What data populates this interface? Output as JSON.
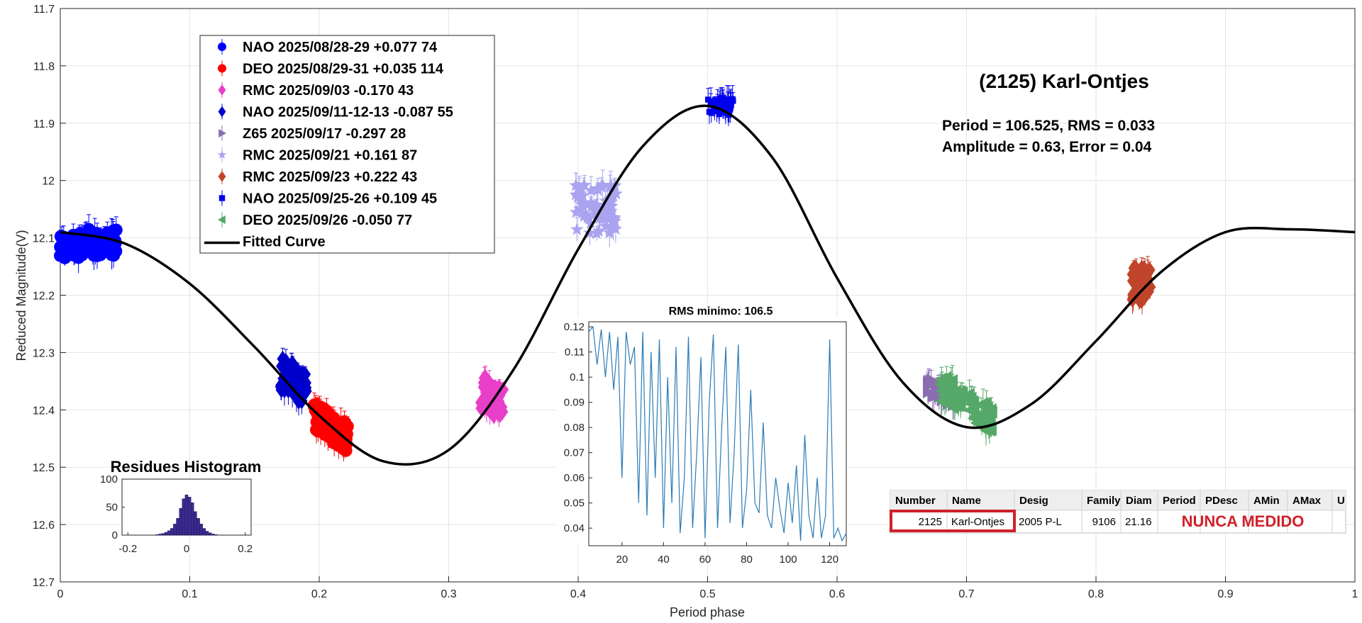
{
  "chart_data": [
    {
      "type": "scatter",
      "title": "(2125) Karl-Ontjes",
      "xlabel": "Period phase",
      "ylabel": "Reduced Magnitude(V)",
      "xlim": [
        0,
        1
      ],
      "ylim": [
        11.7,
        12.7
      ],
      "y_reversed": true,
      "xticks": [
        "0",
        "0.1",
        "0.2",
        "0.3",
        "0.4",
        "0.5",
        "0.6",
        "0.7",
        "0.8",
        "0.9",
        "1"
      ],
      "yticks": [
        "11.7",
        "11.8",
        "11.9",
        "12",
        "12.1",
        "12.2",
        "12.3",
        "12.4",
        "12.5",
        "12.6",
        "12.7"
      ],
      "stats": {
        "period_line": "Period =  106.525, RMS = 0.033",
        "amplitude_line": "Amplitude = 0.63, Error = 0.04"
      },
      "series": [
        {
          "name": "NAO 2025/08/28-29   +0.077    74",
          "color": "#0000ff",
          "marker": "circle",
          "count": 74,
          "phase_range": [
            0.0,
            0.045
          ],
          "center_mag": 12.11
        },
        {
          "name": "DEO 2025/08/29-31   +0.035  114",
          "color": "#ff0000",
          "marker": "circle",
          "count": 114,
          "phase_range": [
            0.195,
            0.222
          ],
          "center_mag": 12.43
        },
        {
          "name": "RMC 2025/09/03   -0.170    43",
          "color": "#e83fc8",
          "marker": "diamond",
          "count": 43,
          "phase_range": [
            0.325,
            0.342
          ],
          "center_mag": 12.38
        },
        {
          "name": "NAO 2025/09/11-12-13 -0.087 55",
          "color": "#0000cc",
          "marker": "diamond",
          "count": 55,
          "phase_range": [
            0.17,
            0.19
          ],
          "center_mag": 12.35
        },
        {
          "name": "Z65 2025/09/17    -0.297    28",
          "color": "#8a6db0",
          "marker": "triangle-right",
          "count": 28,
          "phase_range": [
            0.67,
            0.69
          ],
          "center_mag": 12.37
        },
        {
          "name": "RMC 2025/09/21    +0.161    87",
          "color": "#a9a3f0",
          "marker": "star",
          "count": 87,
          "phase_range": [
            0.398,
            0.43
          ],
          "center_mag": 12.05
        },
        {
          "name": "RMC 2025/09/23    +0.222    43",
          "color": "#c0442a",
          "marker": "diamond",
          "count": 43,
          "phase_range": [
            0.828,
            0.842
          ],
          "center_mag": 12.18
        },
        {
          "name": "NAO 2025/09/25-26  +0.109    45",
          "color": "#0000ee",
          "marker": "square",
          "count": 45,
          "phase_range": [
            0.5,
            0.52
          ],
          "center_mag": 11.87
        },
        {
          "name": "DEO 2025/09/26    -0.050    77",
          "color": "#55a868",
          "marker": "triangle-left",
          "count": 77,
          "phase_range": [
            0.68,
            0.72
          ],
          "center_mag": 12.39
        },
        {
          "name": "Fitted Curve",
          "color": "#000000",
          "marker": "line",
          "x": [
            0,
            0.05,
            0.1,
            0.15,
            0.2,
            0.25,
            0.3,
            0.35,
            0.4,
            0.45,
            0.5,
            0.55,
            0.6,
            0.65,
            0.7,
            0.75,
            0.8,
            0.85,
            0.9,
            0.95,
            1
          ],
          "y": [
            12.09,
            12.11,
            12.18,
            12.29,
            12.41,
            12.49,
            12.47,
            12.33,
            12.12,
            11.94,
            11.87,
            11.96,
            12.17,
            12.35,
            12.43,
            12.39,
            12.28,
            12.16,
            12.09,
            12.085,
            12.09
          ]
        }
      ]
    },
    {
      "type": "line",
      "title": "RMS minimo: 106.5",
      "xticks": [
        "20",
        "40",
        "60",
        "80",
        "100",
        "120"
      ],
      "yticks": [
        "0.12",
        "0.11",
        "0.1",
        "0.09",
        "0.08",
        "0.07",
        "0.06",
        "0.05",
        "0.04"
      ],
      "xlim": [
        4,
        128
      ],
      "ylim": [
        0.033,
        0.122
      ],
      "x": [
        4,
        6,
        8,
        10,
        12,
        14,
        16,
        18,
        20,
        22,
        24,
        26,
        28,
        30,
        32,
        34,
        36,
        38,
        40,
        42,
        44,
        46,
        48,
        50,
        52,
        54,
        56,
        58,
        60,
        62,
        64,
        66,
        68,
        70,
        72,
        74,
        76,
        78,
        80,
        82,
        84,
        86,
        88,
        90,
        92,
        94,
        96,
        98,
        100,
        102,
        104,
        106,
        108,
        110,
        112,
        114,
        116,
        118,
        120,
        122,
        124,
        126,
        128
      ],
      "y": [
        0.118,
        0.12,
        0.105,
        0.119,
        0.1,
        0.118,
        0.095,
        0.116,
        0.06,
        0.118,
        0.105,
        0.112,
        0.05,
        0.118,
        0.045,
        0.11,
        0.06,
        0.115,
        0.04,
        0.1,
        0.05,
        0.112,
        0.038,
        0.06,
        0.116,
        0.04,
        0.07,
        0.108,
        0.036,
        0.09,
        0.117,
        0.04,
        0.08,
        0.112,
        0.042,
        0.07,
        0.113,
        0.04,
        0.055,
        0.095,
        0.05,
        0.046,
        0.082,
        0.045,
        0.04,
        0.06,
        0.048,
        0.038,
        0.058,
        0.042,
        0.065,
        0.035,
        0.077,
        0.045,
        0.036,
        0.06,
        0.036,
        0.045,
        0.115,
        0.036,
        0.04,
        0.035,
        0.038
      ]
    },
    {
      "type": "bar",
      "title": "Residues Histogram",
      "xticks": [
        "-0.2",
        "0",
        "0.2"
      ],
      "yticks": [
        "100",
        "50",
        "0"
      ],
      "xlim": [
        -0.22,
        0.22
      ],
      "ylim": [
        0,
        100
      ],
      "color": "#3a2a8e",
      "categories": [
        "-0.10",
        "-0.09",
        "-0.08",
        "-0.07",
        "-0.06",
        "-0.05",
        "-0.04",
        "-0.03",
        "-0.02",
        "-0.01",
        "0",
        "0.01",
        "0.02",
        "0.03",
        "0.04",
        "0.05",
        "0.06",
        "0.07",
        "0.08",
        "0.09",
        "0.10"
      ],
      "values": [
        1,
        2,
        3,
        5,
        8,
        12,
        20,
        30,
        48,
        65,
        72,
        68,
        58,
        42,
        30,
        20,
        12,
        7,
        4,
        2,
        1
      ]
    }
  ],
  "asteroid_table": {
    "headers": [
      "Number",
      "Name",
      "Desig",
      "Family",
      "Diam",
      "Period",
      "PDesc",
      "AMin",
      "AMax",
      "U"
    ],
    "row": [
      "2125",
      "Karl-Ontjes",
      "2005 P-L",
      "9106",
      "21.16"
    ],
    "status_note": "NUNCA MEDIDO",
    "highlight_color": "#d0202a"
  }
}
